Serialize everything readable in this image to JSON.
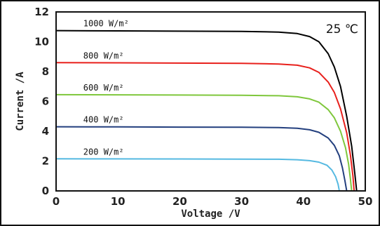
{
  "chart_data": {
    "type": "line",
    "xlabel": "Voltage /V",
    "ylabel": "Current /A",
    "xlim": [
      0,
      50
    ],
    "ylim": [
      0,
      12
    ],
    "xticks": [
      0,
      10,
      20,
      30,
      40,
      50
    ],
    "yticks": [
      0,
      2,
      4,
      6,
      8,
      10,
      12
    ],
    "grid": false,
    "annotation": "25 ℃",
    "series": [
      {
        "name": "1000 W/m²",
        "color": "#000000",
        "x": [
          0,
          10,
          20,
          30,
          36,
          39,
          41,
          42.5,
          44,
          45,
          46,
          47,
          47.8,
          48.3,
          48.6
        ],
        "y": [
          10.75,
          10.73,
          10.71,
          10.69,
          10.65,
          10.55,
          10.35,
          10.0,
          9.2,
          8.3,
          7.0,
          5.0,
          3.0,
          1.2,
          0
        ]
      },
      {
        "name": "800 W/m²",
        "color": "#e8201c",
        "x": [
          0,
          10,
          20,
          30,
          36,
          39,
          41,
          42.5,
          44,
          45,
          46,
          47,
          47.6,
          48.0,
          48.2
        ],
        "y": [
          8.6,
          8.59,
          8.57,
          8.55,
          8.51,
          8.43,
          8.25,
          7.95,
          7.3,
          6.6,
          5.5,
          3.9,
          2.4,
          1.0,
          0
        ]
      },
      {
        "name": "600 W/m²",
        "color": "#7fc73c",
        "x": [
          0,
          10,
          20,
          30,
          36,
          39,
          41,
          42.5,
          44,
          45,
          46,
          46.8,
          47.3,
          47.6,
          47.8
        ],
        "y": [
          6.45,
          6.44,
          6.43,
          6.41,
          6.38,
          6.31,
          6.17,
          5.95,
          5.45,
          4.9,
          4.0,
          2.9,
          1.8,
          0.8,
          0
        ]
      },
      {
        "name": "400 W/m²",
        "color": "#233f7e",
        "x": [
          0,
          10,
          20,
          30,
          36,
          39,
          41,
          42.5,
          44,
          45,
          45.8,
          46.3,
          46.7,
          47.0
        ],
        "y": [
          4.3,
          4.29,
          4.28,
          4.27,
          4.25,
          4.2,
          4.1,
          3.93,
          3.55,
          3.05,
          2.35,
          1.55,
          0.7,
          0
        ]
      },
      {
        "name": "200 W/m²",
        "color": "#55b9e1",
        "x": [
          0,
          10,
          20,
          30,
          36,
          39,
          41,
          42.5,
          43.8,
          44.6,
          45.2,
          45.6,
          45.8
        ],
        "y": [
          2.15,
          2.145,
          2.14,
          2.13,
          2.12,
          2.09,
          2.03,
          1.93,
          1.72,
          1.4,
          0.95,
          0.45,
          0
        ]
      }
    ]
  }
}
